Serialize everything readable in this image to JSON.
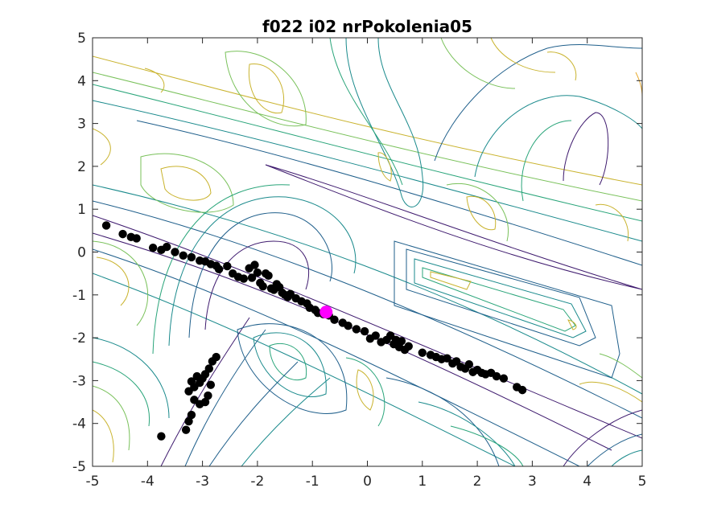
{
  "chart_data": {
    "type": "scatter",
    "title": "f022 i02 nrPokolenia05",
    "xlabel": "",
    "ylabel": "",
    "xlim": [
      -5,
      5
    ],
    "ylim": [
      -5,
      5
    ],
    "xticks": [
      -5,
      -4,
      -3,
      -2,
      -1,
      0,
      1,
      2,
      3,
      4,
      5
    ],
    "yticks": [
      -5,
      -4,
      -3,
      -2,
      -1,
      0,
      1,
      2,
      3,
      4,
      5
    ],
    "grid": false,
    "legend": "none",
    "background_contours": {
      "colormap": [
        "#3e1a6e",
        "#1f5f8b",
        "#1a8a8c",
        "#2aa57a",
        "#79c15a",
        "#c9b32e",
        "#e6a82a"
      ]
    },
    "series": [
      {
        "marker_color": "#000000",
        "points": [
          [
            -4.75,
            0.62
          ],
          [
            -4.45,
            0.42
          ],
          [
            -4.3,
            0.35
          ],
          [
            -4.2,
            0.32
          ],
          [
            -3.9,
            0.1
          ],
          [
            -3.75,
            0.05
          ],
          [
            -3.65,
            0.12
          ],
          [
            -3.5,
            0.0
          ],
          [
            -3.35,
            -0.08
          ],
          [
            -3.2,
            -0.12
          ],
          [
            -3.05,
            -0.2
          ],
          [
            -2.95,
            -0.22
          ],
          [
            -2.85,
            -0.28
          ],
          [
            -2.75,
            -0.32
          ],
          [
            -2.7,
            -0.4
          ],
          [
            -2.55,
            -0.33
          ],
          [
            -2.45,
            -0.5
          ],
          [
            -2.35,
            -0.58
          ],
          [
            -2.25,
            -0.62
          ],
          [
            -2.15,
            -0.38
          ],
          [
            -2.1,
            -0.6
          ],
          [
            -2.05,
            -0.3
          ],
          [
            -2.0,
            -0.48
          ],
          [
            -1.95,
            -0.72
          ],
          [
            -1.9,
            -0.8
          ],
          [
            -1.85,
            -0.5
          ],
          [
            -1.8,
            -0.55
          ],
          [
            -1.75,
            -0.85
          ],
          [
            -1.7,
            -0.88
          ],
          [
            -1.65,
            -0.75
          ],
          [
            -1.6,
            -0.82
          ],
          [
            -1.55,
            -0.95
          ],
          [
            -1.5,
            -1.0
          ],
          [
            -1.45,
            -1.05
          ],
          [
            -1.4,
            -0.98
          ],
          [
            -1.3,
            -1.08
          ],
          [
            -1.2,
            -1.15
          ],
          [
            -1.1,
            -1.2
          ],
          [
            -1.05,
            -1.3
          ],
          [
            -0.95,
            -1.35
          ],
          [
            -0.9,
            -1.42
          ],
          [
            -0.8,
            -1.45
          ],
          [
            -0.7,
            -1.48
          ],
          [
            -0.6,
            -1.58
          ],
          [
            -0.45,
            -1.65
          ],
          [
            -0.35,
            -1.72
          ],
          [
            -0.2,
            -1.8
          ],
          [
            -0.05,
            -1.85
          ],
          [
            0.05,
            -2.02
          ],
          [
            0.15,
            -1.95
          ],
          [
            0.25,
            -2.1
          ],
          [
            0.35,
            -2.05
          ],
          [
            0.42,
            -1.95
          ],
          [
            0.48,
            -2.15
          ],
          [
            0.52,
            -2.05
          ],
          [
            0.58,
            -2.22
          ],
          [
            0.62,
            -2.08
          ],
          [
            0.68,
            -2.28
          ],
          [
            0.75,
            -2.2
          ],
          [
            1.0,
            -2.35
          ],
          [
            1.15,
            -2.4
          ],
          [
            1.25,
            -2.45
          ],
          [
            1.35,
            -2.5
          ],
          [
            1.45,
            -2.48
          ],
          [
            1.55,
            -2.6
          ],
          [
            1.62,
            -2.55
          ],
          [
            1.7,
            -2.68
          ],
          [
            1.78,
            -2.72
          ],
          [
            1.85,
            -2.62
          ],
          [
            1.92,
            -2.8
          ],
          [
            2.0,
            -2.75
          ],
          [
            2.08,
            -2.82
          ],
          [
            2.15,
            -2.85
          ],
          [
            2.25,
            -2.82
          ],
          [
            2.35,
            -2.9
          ],
          [
            2.48,
            -2.95
          ],
          [
            2.72,
            -3.15
          ],
          [
            2.82,
            -3.22
          ],
          [
            -2.75,
            -2.45
          ],
          [
            -2.82,
            -2.55
          ],
          [
            -2.88,
            -2.72
          ],
          [
            -2.95,
            -2.85
          ],
          [
            -3.0,
            -2.95
          ],
          [
            -3.05,
            -3.05
          ],
          [
            -3.1,
            -2.9
          ],
          [
            -3.15,
            -3.15
          ],
          [
            -3.2,
            -3.02
          ],
          [
            -3.25,
            -3.25
          ],
          [
            -2.85,
            -3.1
          ],
          [
            -2.9,
            -3.35
          ],
          [
            -2.95,
            -3.5
          ],
          [
            -3.05,
            -3.55
          ],
          [
            -3.15,
            -3.45
          ],
          [
            -3.2,
            -3.8
          ],
          [
            -3.3,
            -4.15
          ],
          [
            -3.75,
            -4.3
          ],
          [
            -3.25,
            -3.95
          ]
        ]
      },
      {
        "marker_color": "#ff00ff",
        "points": [
          [
            -0.75,
            -1.4
          ]
        ]
      }
    ]
  }
}
